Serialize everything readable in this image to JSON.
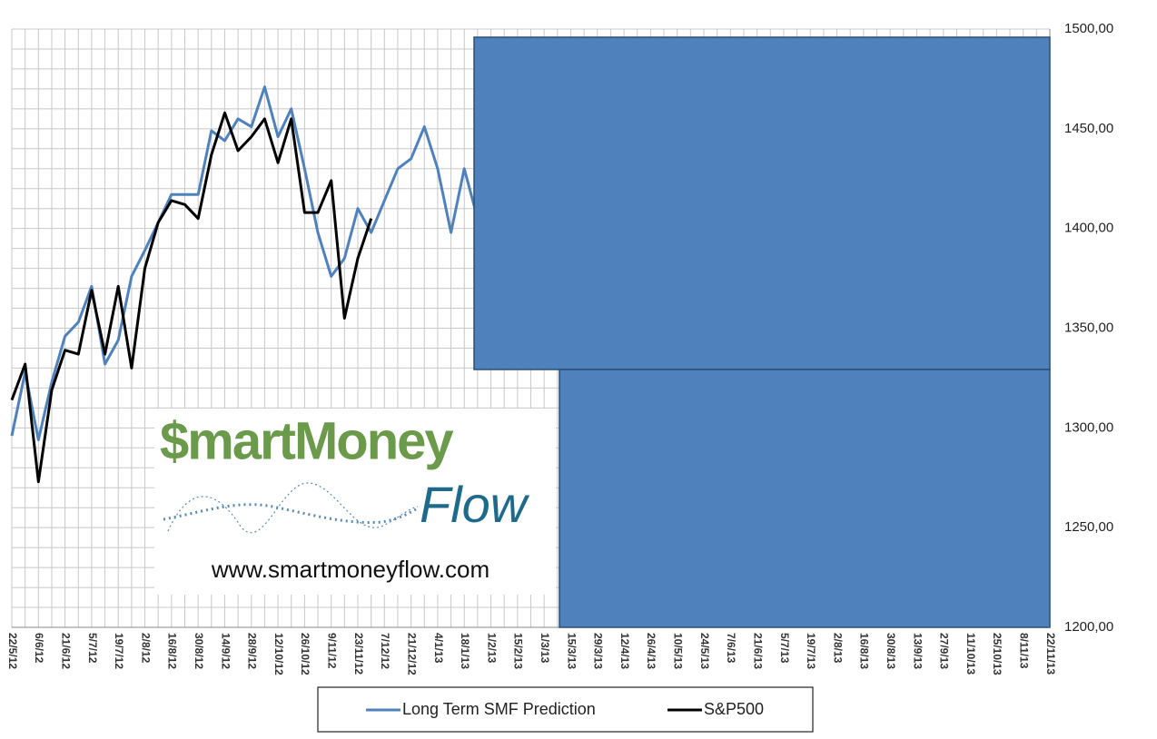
{
  "chart_data": {
    "type": "line",
    "categories": [
      "22/5/12",
      null,
      "6/6/12",
      null,
      "21/6/12",
      null,
      "5/7/12",
      null,
      "19/7/12",
      null,
      "2/8/12",
      null,
      "16/8/12",
      null,
      "30/8/12",
      null,
      "14/9/12",
      null,
      "28/9/12",
      null,
      "12/10/12",
      null,
      "26/10/12",
      null,
      "9/11/12",
      null,
      "23/11/12",
      null,
      "7/12/12",
      null,
      "21/12/12",
      null,
      "4/1/13",
      null,
      "18/1/13",
      null,
      "1/2/13",
      null,
      "15/2/13",
      null,
      "1/3/13",
      null,
      "15/3/13",
      null,
      "29/3/13",
      null,
      "12/4/13",
      null,
      "26/4/13",
      null,
      "10/5/13",
      null,
      "24/5/13",
      null,
      "7/6/13",
      null,
      "21/6/13",
      null,
      "5/7/13",
      null,
      "19/7/13",
      null,
      "2/8/13",
      null,
      "16/8/13",
      null,
      "30/8/13",
      null,
      "13/9/13",
      null,
      "27/9/13",
      null,
      "11/10/13",
      null,
      "25/10/13",
      null,
      "8/11/13",
      null,
      "22/11/13"
    ],
    "series": [
      {
        "name": "Long Term SMF Prediction",
        "color": "#4f81bd",
        "values": [
          1296,
          1328,
          1294,
          1323,
          1346,
          1353,
          1371,
          1332,
          1344,
          1376,
          1389,
          1403,
          1417,
          1417,
          1417,
          1449,
          1444,
          1455,
          1451,
          1471,
          1446,
          1460,
          1430,
          1398,
          1376,
          1385,
          1410,
          1398,
          1414,
          1430,
          1435,
          1451,
          1430,
          1398,
          1430,
          1405,
          null,
          null,
          null,
          null,
          null,
          null,
          null,
          null,
          null,
          null,
          null,
          null,
          null,
          null,
          null,
          null,
          null,
          null,
          null,
          null,
          null,
          null,
          null,
          null,
          null,
          null,
          null,
          null,
          null,
          null,
          null,
          null,
          null,
          null,
          null,
          null,
          null,
          null,
          null,
          null,
          null,
          null,
          null
        ]
      },
      {
        "name": "S&P500",
        "color": "#000000",
        "values": [
          1314,
          1332,
          1273,
          1319,
          1339,
          1337,
          1369,
          1337,
          1371,
          1330,
          1380,
          1403,
          1414,
          1412,
          1405,
          1437,
          1458,
          1439,
          1446,
          1455,
          1433,
          1455,
          1408,
          1408,
          1424,
          1355,
          1385,
          1405,
          null,
          null,
          null,
          null,
          null,
          null,
          null,
          null,
          null,
          null,
          null,
          null,
          null,
          null,
          null,
          null,
          null,
          null,
          null,
          null,
          null,
          null,
          null,
          null,
          null,
          null,
          null,
          null,
          null,
          null,
          null,
          null,
          null,
          null,
          null,
          null,
          null,
          null,
          null,
          null,
          null,
          null,
          null,
          null,
          null,
          null,
          null,
          null,
          null,
          null,
          null
        ]
      }
    ],
    "ylim": [
      1200,
      1500
    ],
    "yticks": [
      {
        "value": 1200,
        "label": "1200,00"
      },
      {
        "value": 1250,
        "label": "1250,00"
      },
      {
        "value": 1300,
        "label": "1300,00"
      },
      {
        "value": 1350,
        "label": "1350,00"
      },
      {
        "value": 1400,
        "label": "1400,00"
      },
      {
        "value": 1450,
        "label": "1450,00"
      },
      {
        "value": 1500,
        "label": "1500,00"
      }
    ],
    "yminorticks": [
      1210,
      1220,
      1230,
      1240,
      1260,
      1270,
      1280,
      1290,
      1310,
      1320,
      1330,
      1340,
      1360,
      1370,
      1380,
      1390,
      1410,
      1420,
      1430,
      1440,
      1460,
      1470,
      1480,
      1490
    ],
    "grid": true,
    "legend": "bottom"
  },
  "logo": {
    "brand": "$martMoney",
    "script": "Flow",
    "url": "www.smartmoneyflow.com"
  }
}
